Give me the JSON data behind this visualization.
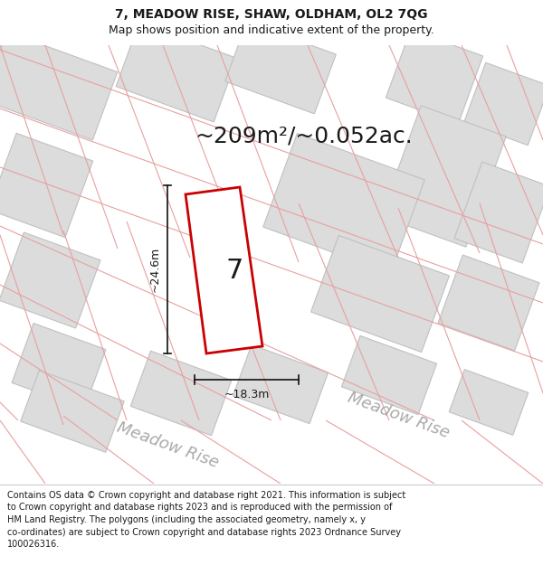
{
  "title": "7, MEADOW RISE, SHAW, OLDHAM, OL2 7QG",
  "subtitle": "Map shows position and indicative extent of the property.",
  "area_label": "~209m²/~0.052ac.",
  "plot_number": "7",
  "dim_width": "~18.3m",
  "dim_height": "~24.6m",
  "road_label_br": "Meadow Rise",
  "road_label_bl": "Meadow Rise",
  "footer_lines": [
    "Contains OS data © Crown copyright and database right 2021. This information is subject",
    "to Crown copyright and database rights 2023 and is reproduced with the permission of",
    "HM Land Registry. The polygons (including the associated geometry, namely x, y",
    "co-ordinates) are subject to Crown copyright and database rights 2023 Ordnance Survey",
    "100026316."
  ],
  "bg_color": "#f2f2f2",
  "plot_fill": "#ffffff",
  "plot_edge": "#cc0000",
  "block_fill": "#dcdcdc",
  "block_edge": "#c0c0c0",
  "pink_line_color": "#e8a0a0",
  "dim_line_color": "#111111",
  "text_color": "#1a1a1a",
  "road_text_color": "#aaaaaa",
  "title_fontsize": 10,
  "subtitle_fontsize": 9,
  "area_fontsize": 18,
  "plot_num_fontsize": 22,
  "road_fontsize": 13,
  "dim_fontsize": 9,
  "footer_fontsize": 7
}
